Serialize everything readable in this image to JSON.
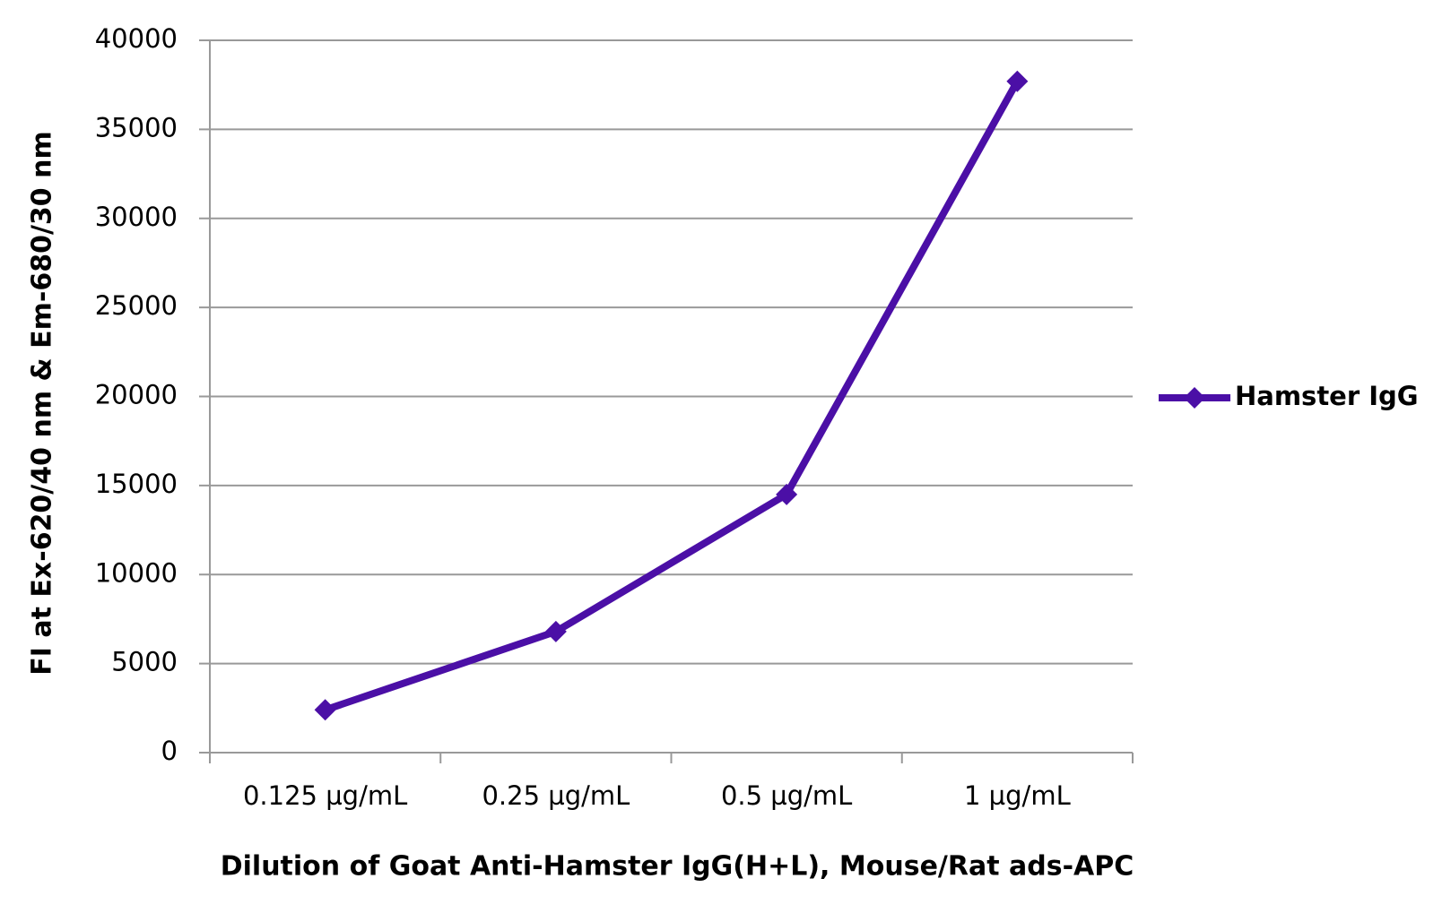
{
  "chart_data": {
    "type": "line",
    "x_label": "Dilution of Goat Anti-Hamster IgG(H+L), Mouse/Rat ads-APC",
    "y_label": "FI at Ex-620/40 nm & Em-680/30 nm",
    "categories": [
      "0.125 µg/mL",
      "0.25 µg/mL",
      "0.5 µg/mL",
      "1 µg/mL"
    ],
    "series": [
      {
        "name": "Hamster IgG",
        "color": "#4b0fa6",
        "values": [
          2400,
          6800,
          14500,
          37700
        ]
      }
    ],
    "ylim": [
      0,
      40000
    ],
    "yticks": [
      0,
      5000,
      10000,
      15000,
      20000,
      25000,
      30000,
      35000,
      40000
    ],
    "grid": true,
    "legend": "right"
  }
}
